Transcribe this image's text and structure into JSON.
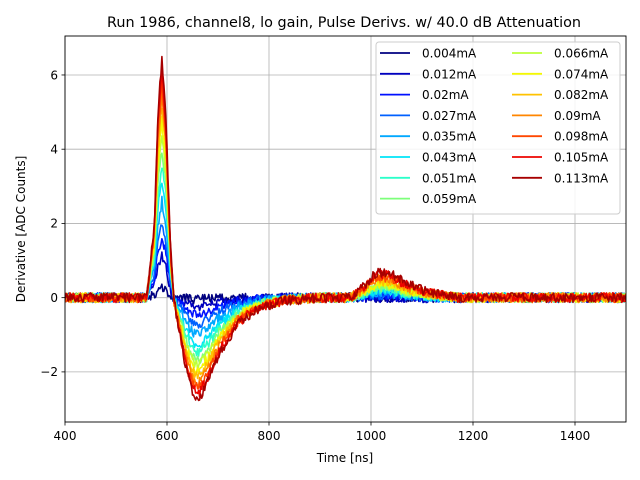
{
  "chart_data": {
    "type": "line",
    "title": "Run 1986, channel8, lo gain, Pulse Derivs. w/ 40.0 dB Attenuation",
    "xlabel": "Time [ns]",
    "ylabel": "Derivative [ADC Counts]",
    "xlim": [
      400,
      1500
    ],
    "ylim": [
      -3.35,
      7.05
    ],
    "xticks": [
      400,
      600,
      800,
      1000,
      1200,
      1400
    ],
    "yticks": [
      -2,
      0,
      2,
      4,
      6
    ],
    "ytick_labels": [
      "−2",
      "0",
      "2",
      "4",
      "6"
    ],
    "grid": true,
    "legend_position": "top-right",
    "legend_columns": 2,
    "noise_amplitude": 0.13,
    "profile_points": [
      [
        400,
        0
      ],
      [
        560,
        0
      ],
      [
        575,
        0.3
      ],
      [
        582,
        0.75
      ],
      [
        590,
        1.0
      ],
      [
        598,
        0.75
      ],
      [
        607,
        0.2
      ],
      [
        618,
        -0.15
      ],
      [
        635,
        -0.6
      ],
      [
        650,
        -0.88
      ],
      [
        662,
        -0.95
      ],
      [
        680,
        -0.78
      ],
      [
        705,
        -0.5
      ],
      [
        740,
        -0.24
      ],
      [
        780,
        -0.1
      ],
      [
        830,
        -0.03
      ],
      [
        900,
        0
      ],
      [
        960,
        0
      ],
      [
        985,
        0.06
      ],
      [
        1010,
        0.13
      ],
      [
        1035,
        0.13
      ],
      [
        1065,
        0.08
      ],
      [
        1110,
        0.03
      ],
      [
        1170,
        0
      ],
      [
        1500,
        0
      ]
    ],
    "series": [
      {
        "name": "0.004mA",
        "color": "#000080",
        "peak": 0.3,
        "trough": -0.05,
        "bump": 0.0
      },
      {
        "name": "0.012mA",
        "color": "#0000bf",
        "peak": 1.1,
        "trough": -0.25,
        "bump": 0.0
      },
      {
        "name": "0.02mA",
        "color": "#0010ff",
        "peak": 1.6,
        "trough": -0.45,
        "bump": 0.05
      },
      {
        "name": "0.027mA",
        "color": "#0060ff",
        "peak": 2.0,
        "trough": -0.7,
        "bump": 0.08
      },
      {
        "name": "0.035mA",
        "color": "#00a8ff",
        "peak": 2.6,
        "trough": -1.0,
        "bump": 0.12
      },
      {
        "name": "0.043mA",
        "color": "#00e4f8",
        "peak": 3.2,
        "trough": -1.3,
        "bump": 0.17
      },
      {
        "name": "0.051mA",
        "color": "#2cffca",
        "peak": 3.6,
        "trough": -1.5,
        "bump": 0.22
      },
      {
        "name": "0.059mA",
        "color": "#7dff7a",
        "peak": 4.0,
        "trough": -1.7,
        "bump": 0.27
      },
      {
        "name": "0.066mA",
        "color": "#bdff39",
        "peak": 4.4,
        "trough": -1.85,
        "bump": 0.32
      },
      {
        "name": "0.074mA",
        "color": "#f4f802",
        "peak": 4.8,
        "trough": -2.0,
        "bump": 0.38
      },
      {
        "name": "0.082mA",
        "color": "#ffc200",
        "peak": 5.2,
        "trough": -2.15,
        "bump": 0.44
      },
      {
        "name": "0.09mA",
        "color": "#ff8600",
        "peak": 5.5,
        "trough": -2.3,
        "bump": 0.5
      },
      {
        "name": "0.098mA",
        "color": "#ff4700",
        "peak": 5.8,
        "trough": -2.45,
        "bump": 0.56
      },
      {
        "name": "0.105mA",
        "color": "#ed0400",
        "peak": 6.1,
        "trough": -2.6,
        "bump": 0.62
      },
      {
        "name": "0.113mA",
        "color": "#a70000",
        "peak": 6.5,
        "trough": -2.75,
        "bump": 0.68
      }
    ]
  }
}
